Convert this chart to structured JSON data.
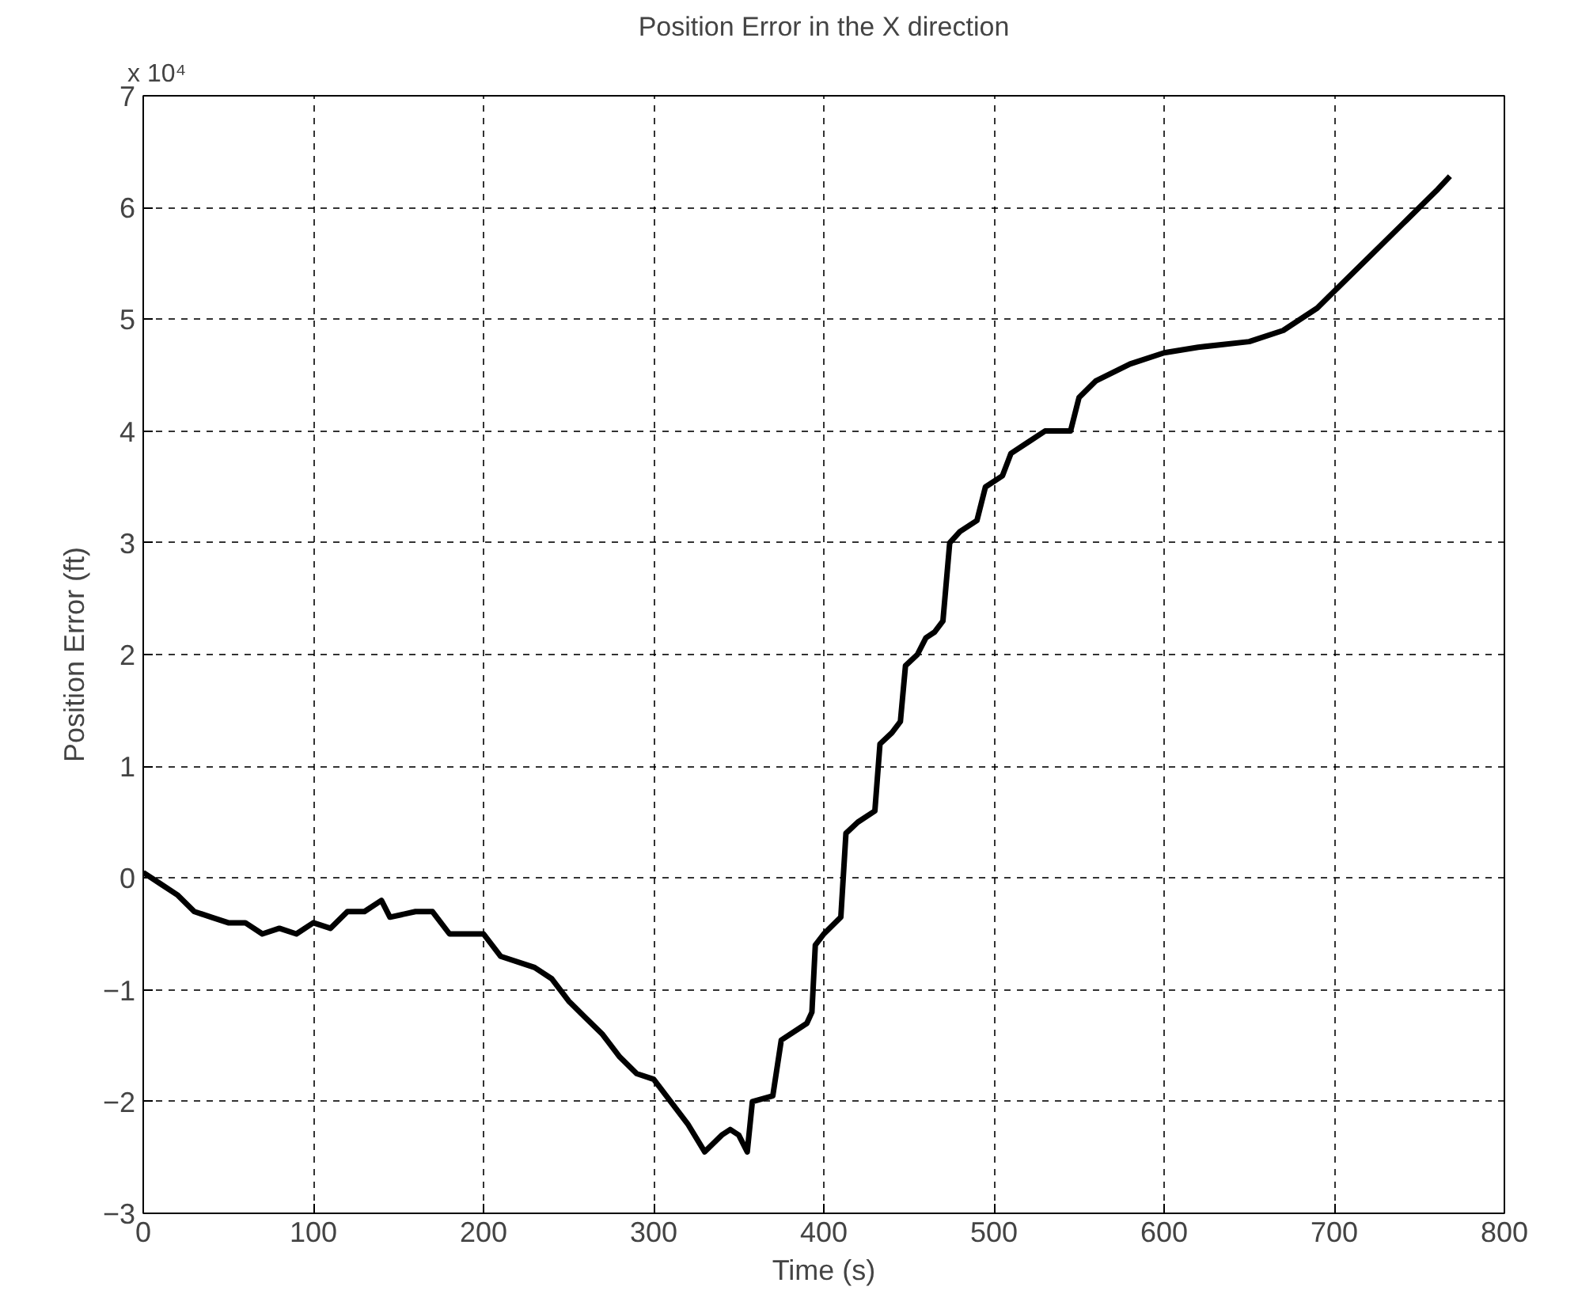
{
  "chart_data": {
    "type": "line",
    "title": "Position Error in the X direction",
    "xlabel": "Time (s)",
    "ylabel": "Position Error (ft)",
    "annotations": [
      "x 10⁴"
    ],
    "xlim": [
      0,
      800
    ],
    "xticks": [
      0,
      100,
      200,
      300,
      400,
      500,
      600,
      700,
      800
    ],
    "ylim": [
      -3,
      7
    ],
    "yticks": [
      -3,
      -2,
      -1,
      0,
      1,
      2,
      3,
      4,
      5,
      6,
      7
    ],
    "grid": true,
    "line_style": "solid",
    "marker": "none",
    "x": [
      0,
      10,
      20,
      30,
      40,
      50,
      60,
      70,
      80,
      90,
      100,
      110,
      120,
      130,
      140,
      145,
      160,
      170,
      180,
      200,
      210,
      230,
      240,
      250,
      260,
      270,
      280,
      290,
      300,
      310,
      320,
      330,
      340,
      345,
      350,
      355,
      358,
      370,
      375,
      390,
      393,
      395,
      400,
      410,
      413,
      420,
      430,
      433,
      440,
      445,
      448,
      455,
      460,
      465,
      470,
      474,
      480,
      490,
      495,
      505,
      510,
      520,
      530,
      545,
      550,
      560,
      580,
      600,
      620,
      650,
      670,
      690,
      700,
      720,
      740,
      760,
      768
    ],
    "series": [
      {
        "color": "#000000",
        "values": [
          0.05,
          -0.05,
          -0.15,
          -0.3,
          -0.35,
          -0.4,
          -0.4,
          -0.5,
          -0.45,
          -0.5,
          -0.4,
          -0.45,
          -0.3,
          -0.3,
          -0.2,
          -0.35,
          -0.3,
          -0.3,
          -0.5,
          -0.5,
          -0.7,
          -0.8,
          -0.9,
          -1.1,
          -1.25,
          -1.4,
          -1.6,
          -1.75,
          -1.8,
          -2.0,
          -2.2,
          -2.45,
          -2.3,
          -2.25,
          -2.3,
          -2.45,
          -2.0,
          -1.95,
          -1.45,
          -1.3,
          -1.2,
          -0.6,
          -0.5,
          -0.35,
          0.4,
          0.5,
          0.6,
          1.2,
          1.3,
          1.4,
          1.9,
          2.0,
          2.15,
          2.2,
          2.3,
          3.0,
          3.1,
          3.2,
          3.5,
          3.6,
          3.8,
          3.9,
          4.0,
          4.0,
          4.3,
          4.45,
          4.6,
          4.7,
          4.75,
          4.8,
          4.9,
          5.1,
          5.25,
          5.55,
          5.85,
          6.15,
          6.28
        ]
      }
    ]
  }
}
